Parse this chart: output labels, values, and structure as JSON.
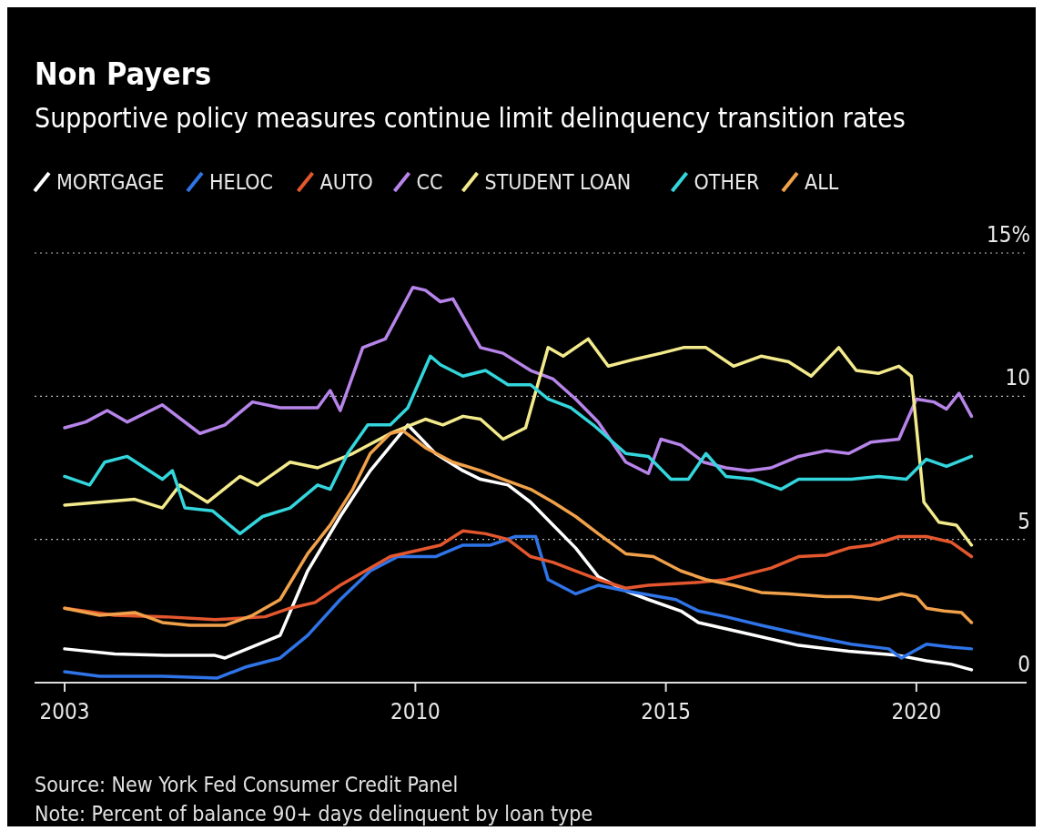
{
  "chart_data": {
    "type": "line",
    "title": "Non Payers",
    "subtitle": "Supportive policy measures continue limit delinquency transition rates",
    "xlim": [
      2002.4,
      2022.2
    ],
    "xticks": [
      2003,
      2010,
      2015,
      2020
    ],
    "ylim": [
      0,
      15
    ],
    "yticks": [
      0,
      5,
      10,
      {
        "value": 15,
        "label": "15%"
      }
    ],
    "grid": "y",
    "legend": "top left",
    "line_style": "solid",
    "marker": "none",
    "annotations": [
      "Source: New York Fed Consumer Credit Panel",
      "Note: Percent of balance 90+ days delinquent by loan type"
    ],
    "series": [
      {
        "name": "MORTGAGE",
        "color": "#ffffff",
        "x": [
          2003,
          2004,
          2005,
          2006,
          2006.2,
          2007.3,
          2007.85,
          2008.5,
          2009.1,
          2009.85,
          2010.4,
          2010.95,
          2011.3,
          2011.85,
          2012.3,
          2012.75,
          2013.2,
          2013.65,
          2014.2,
          2014.65,
          2015.3,
          2015.65,
          2016.65,
          2017.65,
          2018.65,
          2019.65,
          2020.2,
          2020.7,
          2021.1
        ],
        "values": [
          1.18,
          1.0,
          0.95,
          0.95,
          0.86,
          1.65,
          3.9,
          5.8,
          7.4,
          9.0,
          8.0,
          7.4,
          7.1,
          6.9,
          6.3,
          5.5,
          4.7,
          3.7,
          3.2,
          2.9,
          2.5,
          2.1,
          1.7,
          1.3,
          1.1,
          0.95,
          0.76,
          0.64,
          0.45
        ]
      },
      {
        "name": "HELOC",
        "color": "#2f74e8",
        "x": [
          2003,
          2003.7,
          2004.95,
          2006.05,
          2006.6,
          2007.3,
          2007.85,
          2008.5,
          2009.1,
          2009.65,
          2010.4,
          2010.95,
          2011.5,
          2012.0,
          2012.4,
          2012.65,
          2013.2,
          2013.65,
          2014.2,
          2014.55,
          2015.2,
          2015.65,
          2016.2,
          2016.9,
          2017.8,
          2018.7,
          2019.45,
          2019.7,
          2020.2,
          2020.7,
          2021.1
        ],
        "values": [
          0.38,
          0.22,
          0.22,
          0.16,
          0.54,
          0.86,
          1.65,
          2.9,
          3.9,
          4.4,
          4.4,
          4.8,
          4.8,
          5.1,
          5.1,
          3.6,
          3.1,
          3.4,
          3.2,
          3.1,
          2.9,
          2.5,
          2.3,
          2.0,
          1.65,
          1.34,
          1.18,
          0.86,
          1.34,
          1.24,
          1.18
        ]
      },
      {
        "name": "AUTO",
        "color": "#e4572e",
        "x": [
          2003,
          2004,
          2005,
          2006,
          2007,
          2007.5,
          2008,
          2008.5,
          2009,
          2009.5,
          2010,
          2010.5,
          2010.95,
          2011.4,
          2011.85,
          2012.3,
          2012.75,
          2013.2,
          2013.65,
          2014.2,
          2014.65,
          2015.65,
          2016.2,
          2016.65,
          2017.1,
          2017.65,
          2018.2,
          2018.65,
          2019.1,
          2019.65,
          2020.2,
          2020.7,
          2021.1
        ],
        "values": [
          2.6,
          2.35,
          2.3,
          2.2,
          2.3,
          2.6,
          2.8,
          3.4,
          3.9,
          4.4,
          4.6,
          4.8,
          5.3,
          5.2,
          5.0,
          4.4,
          4.2,
          3.9,
          3.6,
          3.3,
          3.4,
          3.5,
          3.6,
          3.8,
          4.0,
          4.4,
          4.45,
          4.7,
          4.8,
          5.1,
          5.1,
          4.9,
          4.4
        ]
      },
      {
        "name": "CC",
        "color": "#b784ea",
        "x": [
          2003,
          2003.42,
          2003.85,
          2004.25,
          2004.95,
          2005.7,
          2006.2,
          2006.75,
          2007.3,
          2008.05,
          2008.3,
          2008.5,
          2008.95,
          2009.4,
          2009.95,
          2010.2,
          2010.5,
          2010.75,
          2011.3,
          2011.75,
          2012.3,
          2012.75,
          2013.2,
          2013.65,
          2014.2,
          2014.65,
          2014.9,
          2015.3,
          2015.75,
          2016.2,
          2016.65,
          2017.1,
          2017.65,
          2018.2,
          2018.65,
          2019.1,
          2019.65,
          2020.0,
          2020.35,
          2020.6,
          2020.85,
          2021.1
        ],
        "values": [
          8.9,
          9.1,
          9.5,
          9.1,
          9.7,
          8.7,
          9.0,
          9.8,
          9.6,
          9.6,
          10.2,
          9.5,
          11.7,
          12.0,
          13.8,
          13.7,
          13.3,
          13.4,
          11.7,
          11.5,
          10.9,
          10.6,
          9.9,
          9.1,
          7.7,
          7.3,
          8.5,
          8.3,
          7.7,
          7.5,
          7.4,
          7.5,
          7.9,
          8.1,
          8.0,
          8.4,
          8.5,
          9.9,
          9.8,
          9.55,
          10.1,
          9.3
        ]
      },
      {
        "name": "STUDENT LOAN",
        "color": "#f3ea8c",
        "x": [
          2003,
          2003.7,
          2004.4,
          2004.95,
          2005.3,
          2005.85,
          2006.5,
          2006.85,
          2007.5,
          2008.05,
          2008.75,
          2009.5,
          2010.2,
          2010.55,
          2010.95,
          2011.3,
          2011.75,
          2012.2,
          2012.65,
          2012.95,
          2013.45,
          2013.85,
          2014.4,
          2014.9,
          2015.35,
          2015.8,
          2016.35,
          2016.9,
          2017.45,
          2017.9,
          2018.45,
          2018.8,
          2019.25,
          2019.65,
          2019.9,
          2020.15,
          2020.45,
          2020.8,
          2021.1
        ],
        "values": [
          6.2,
          6.3,
          6.4,
          6.1,
          6.9,
          6.3,
          7.2,
          6.9,
          7.7,
          7.5,
          8.0,
          8.7,
          9.2,
          9.0,
          9.3,
          9.2,
          8.5,
          8.9,
          11.7,
          11.4,
          12.0,
          11.05,
          11.3,
          11.5,
          11.7,
          11.7,
          11.05,
          11.4,
          11.2,
          10.7,
          11.7,
          10.9,
          10.8,
          11.05,
          10.7,
          6.3,
          5.6,
          5.5,
          4.8
        ]
      },
      {
        "name": "OTHER",
        "color": "#33d6dc",
        "x": [
          2003,
          2003.5,
          2003.8,
          2004.25,
          2004.6,
          2004.95,
          2005.15,
          2005.4,
          2005.95,
          2006.5,
          2006.95,
          2007.5,
          2008.05,
          2008.3,
          2008.65,
          2009.05,
          2009.5,
          2009.85,
          2010.3,
          2010.5,
          2010.95,
          2011.4,
          2011.85,
          2012.3,
          2012.65,
          2013.1,
          2013.55,
          2014.2,
          2014.65,
          2015.1,
          2015.45,
          2015.8,
          2016.2,
          2016.75,
          2017.3,
          2017.65,
          2018.2,
          2018.7,
          2019.25,
          2019.8,
          2020.2,
          2020.6,
          2021.1
        ],
        "values": [
          7.2,
          6.9,
          7.7,
          7.9,
          7.5,
          7.1,
          7.4,
          6.1,
          6.0,
          5.2,
          5.8,
          6.1,
          6.9,
          6.75,
          8.0,
          9.0,
          9.0,
          9.6,
          11.4,
          11.1,
          10.7,
          10.9,
          10.4,
          10.4,
          9.9,
          9.6,
          9.0,
          8.0,
          7.9,
          7.1,
          7.1,
          8.0,
          7.2,
          7.1,
          6.75,
          7.1,
          7.1,
          7.1,
          7.2,
          7.1,
          7.8,
          7.55,
          7.9
        ]
      },
      {
        "name": "ALL",
        "color": "#f0a14a",
        "x": [
          2003,
          2003.7,
          2004.4,
          2004.95,
          2005.5,
          2006.2,
          2006.75,
          2007.3,
          2007.85,
          2008.3,
          2008.75,
          2009.1,
          2009.5,
          2009.75,
          2010.2,
          2010.75,
          2011.3,
          2011.75,
          2012.3,
          2012.75,
          2013.2,
          2013.65,
          2014.2,
          2014.75,
          2015.3,
          2015.8,
          2016.35,
          2016.9,
          2017.45,
          2018.2,
          2018.7,
          2019.25,
          2019.7,
          2020.0,
          2020.2,
          2020.55,
          2020.9,
          2021.1
        ],
        "values": [
          2.6,
          2.35,
          2.45,
          2.1,
          2.0,
          2.0,
          2.35,
          2.9,
          4.5,
          5.5,
          6.75,
          8.0,
          8.7,
          8.8,
          8.2,
          7.7,
          7.4,
          7.1,
          6.75,
          6.3,
          5.8,
          5.2,
          4.5,
          4.4,
          3.9,
          3.6,
          3.4,
          3.15,
          3.1,
          3.0,
          3.0,
          2.9,
          3.1,
          3.0,
          2.6,
          2.5,
          2.45,
          2.1
        ]
      }
    ]
  }
}
